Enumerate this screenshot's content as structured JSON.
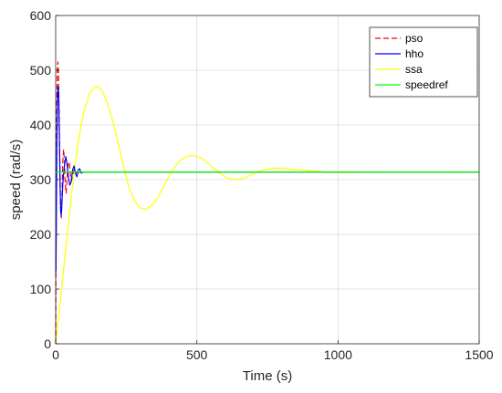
{
  "chart_data": {
    "type": "line",
    "title": "",
    "xlabel": "Time (s)",
    "ylabel": "speed (rad/s)",
    "xlim": [
      0,
      1500
    ],
    "ylim": [
      0,
      600
    ],
    "xticks": [
      0,
      500,
      1000,
      1500
    ],
    "yticks": [
      0,
      100,
      200,
      300,
      400,
      500,
      600
    ],
    "grid": true,
    "legend_position": "top-right",
    "series": [
      {
        "name": "pso",
        "color": "#ff0000",
        "style": "dashed",
        "x": [
          0,
          1,
          2,
          4,
          6,
          8,
          10,
          12,
          14,
          16,
          18,
          20,
          22,
          25,
          28,
          31,
          34,
          37,
          40,
          44,
          48,
          52,
          56,
          60,
          65,
          70,
          80,
          100,
          1500
        ],
        "y": [
          0,
          150,
          300,
          450,
          500,
          515,
          495,
          430,
          350,
          280,
          240,
          230,
          260,
          330,
          355,
          335,
          290,
          275,
          300,
          330,
          332,
          310,
          298,
          308,
          318,
          312,
          313,
          314,
          314
        ]
      },
      {
        "name": "hho",
        "color": "#0000ff",
        "style": "solid",
        "x": [
          0,
          1,
          2,
          4,
          6,
          8,
          10,
          12,
          14,
          16,
          18,
          20,
          22,
          25,
          28,
          32,
          36,
          40,
          45,
          50,
          55,
          60,
          65,
          70,
          75,
          80,
          85,
          90,
          100,
          110,
          1500
        ],
        "y": [
          130,
          135,
          200,
          350,
          440,
          470,
          465,
          420,
          350,
          280,
          240,
          235,
          255,
          290,
          310,
          330,
          342,
          330,
          305,
          290,
          296,
          318,
          325,
          312,
          305,
          318,
          320,
          312,
          314,
          314,
          314
        ]
      },
      {
        "name": "ssa",
        "color": "#ffff00",
        "style": "solid",
        "x": [
          0,
          20,
          40,
          60,
          80,
          100,
          120,
          140,
          150,
          160,
          180,
          200,
          220,
          240,
          260,
          280,
          300,
          320,
          340,
          360,
          380,
          400,
          420,
          440,
          460,
          480,
          500,
          520,
          540,
          560,
          580,
          600,
          620,
          640,
          660,
          680,
          700,
          720,
          740,
          760,
          780,
          800,
          820,
          840,
          860,
          880,
          900,
          920,
          940,
          960,
          980,
          1000,
          1050,
          1100,
          1150,
          1200,
          1300,
          1400,
          1500
        ],
        "y": [
          0,
          95,
          195,
          290,
          370,
          425,
          458,
          470,
          470,
          466,
          445,
          412,
          370,
          325,
          285,
          260,
          248,
          246,
          252,
          265,
          285,
          305,
          322,
          335,
          342,
          344,
          343,
          338,
          330,
          320,
          312,
          305,
          301,
          300,
          302,
          306,
          310,
          315,
          318,
          320,
          321,
          321,
          320,
          319,
          318,
          317,
          316,
          315,
          315,
          314,
          313,
          313,
          313,
          314,
          314,
          314,
          314,
          314,
          314
        ]
      },
      {
        "name": "speedref",
        "color": "#00ff00",
        "style": "solid",
        "x": [
          0,
          1500
        ],
        "y": [
          314,
          314
        ]
      }
    ]
  }
}
